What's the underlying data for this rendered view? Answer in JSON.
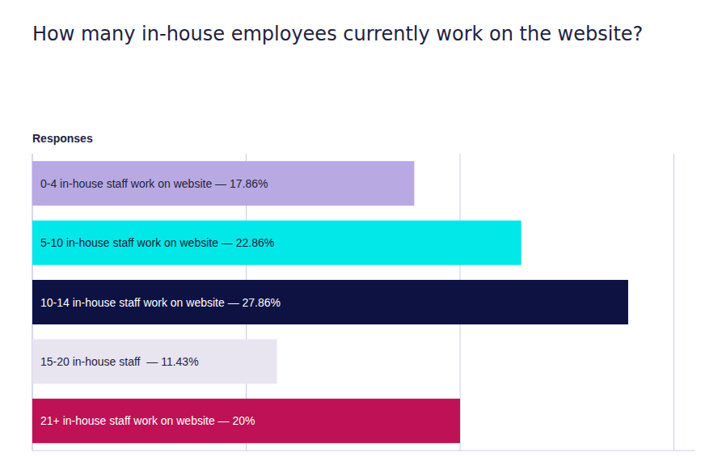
{
  "chart_data": {
    "type": "bar",
    "orientation": "horizontal",
    "title": "How many in-house employees currently work on the website?",
    "xlabel": "Responses",
    "categories": [
      "0-4 in-house staff work on website — 17.86%",
      "5-10 in-house staff work on website — 22.86%",
      "10-14 in-house staff work on website — 27.86%",
      "15-20 in-house staff  — 11.43%",
      "21+ in-house staff work on website — 20%"
    ],
    "values": [
      17.86,
      22.86,
      27.86,
      11.43,
      20.0
    ],
    "colors": [
      "#b8a9e3",
      "#00e8e8",
      "#0d1242",
      "#e8e4f0",
      "#bf1155"
    ],
    "xlim": [
      0,
      31
    ],
    "xticks": [
      0,
      10,
      20,
      30
    ],
    "grid": true,
    "tick_labels": false
  }
}
